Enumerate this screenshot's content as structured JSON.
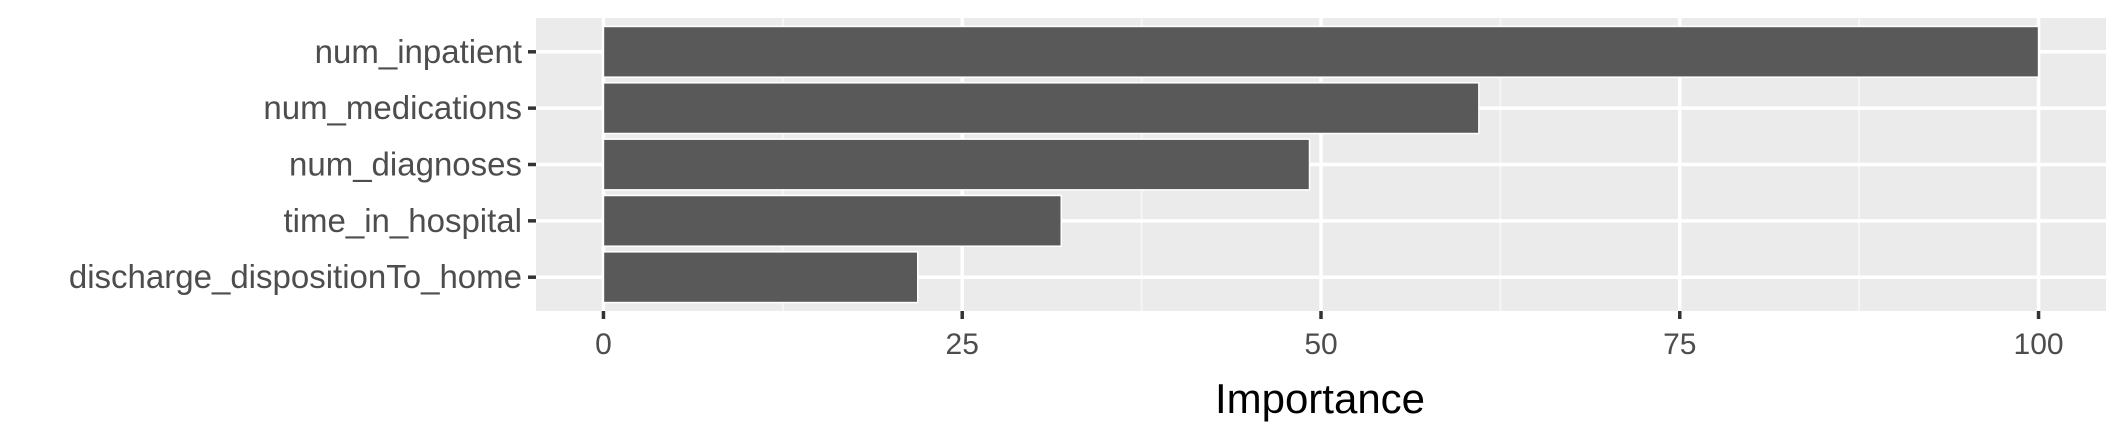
{
  "chart_data": {
    "type": "bar",
    "orientation": "horizontal",
    "categories": [
      "num_inpatient",
      "num_medications",
      "num_diagnoses",
      "time_in_hospital",
      "discharge_dispositionTo_home"
    ],
    "values": [
      100,
      61,
      49.2,
      31.9,
      21.9
    ],
    "xlabel": "Importance",
    "ylabel": "",
    "xlim": [
      -4.7,
      104.7
    ],
    "x_ticks": [
      0,
      25,
      50,
      75,
      100
    ],
    "x_tick_labels": [
      "0",
      "25",
      "50",
      "75",
      "100"
    ],
    "grid": true,
    "colors": {
      "bar": "#595959",
      "panel_background": "#ebebeb",
      "grid_major": "#ffffff",
      "grid_minor": "#f5f5f5",
      "tick_label": "#4d4d4d",
      "axis_title": "#000000",
      "tick_mark": "#333333"
    }
  }
}
